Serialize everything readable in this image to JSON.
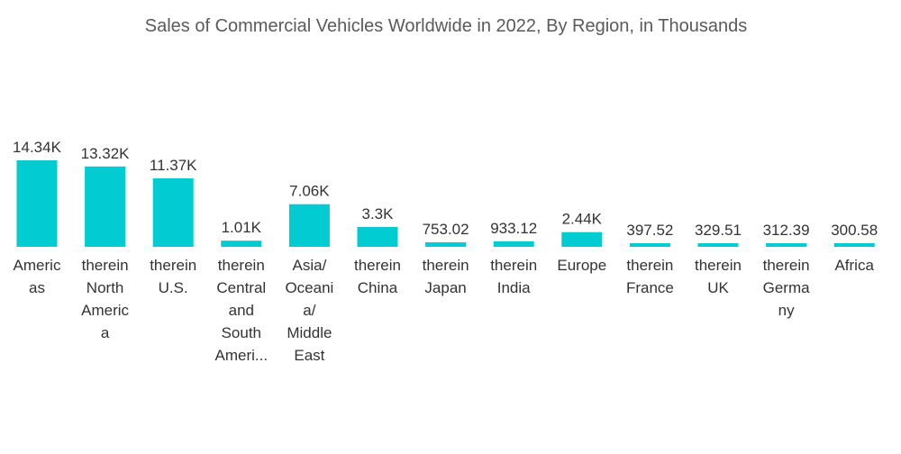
{
  "chart_data": {
    "type": "bar",
    "title": "Sales of Commercial Vehicles Worldwide in 2022, By Region, in Thousands",
    "xlabel": "",
    "ylabel": "",
    "ylim": [
      0,
      14340
    ],
    "grid": false,
    "bar_color": "#00ccd1",
    "categories": [
      "Americas",
      "therein North America",
      "therein U.S.",
      "therein Central and South America",
      "Asia/ Oceania/ Middle East",
      "therein China",
      "therein Japan",
      "therein India",
      "Europe",
      "therein France",
      "therein UK",
      "therein Germany",
      "Africa"
    ],
    "category_label_lines": [
      [
        "Americ",
        "as"
      ],
      [
        "therein",
        "North",
        "Americ",
        "a"
      ],
      [
        "therein",
        "U.S."
      ],
      [
        "therein",
        "Central",
        "and",
        "South",
        "Ameri..."
      ],
      [
        "Asia/",
        "Oceani",
        "a/",
        "Middle",
        "East"
      ],
      [
        "therein",
        "China"
      ],
      [
        "therein",
        "Japan"
      ],
      [
        "therein",
        "India"
      ],
      [
        "Europe"
      ],
      [
        "therein",
        "France"
      ],
      [
        "therein",
        "UK"
      ],
      [
        "therein",
        "Germa",
        "ny"
      ],
      [
        "Africa"
      ]
    ],
    "values": [
      14340,
      13320,
      11370,
      1010,
      7060,
      3300,
      753.02,
      933.12,
      2440,
      397.52,
      329.51,
      312.39,
      300.58
    ],
    "value_labels": [
      "14.34K",
      "13.32K",
      "11.37K",
      "1.01K",
      "7.06K",
      "3.3K",
      "753.02",
      "933.12",
      "2.44K",
      "397.52",
      "329.51",
      "312.39",
      "300.58"
    ]
  }
}
